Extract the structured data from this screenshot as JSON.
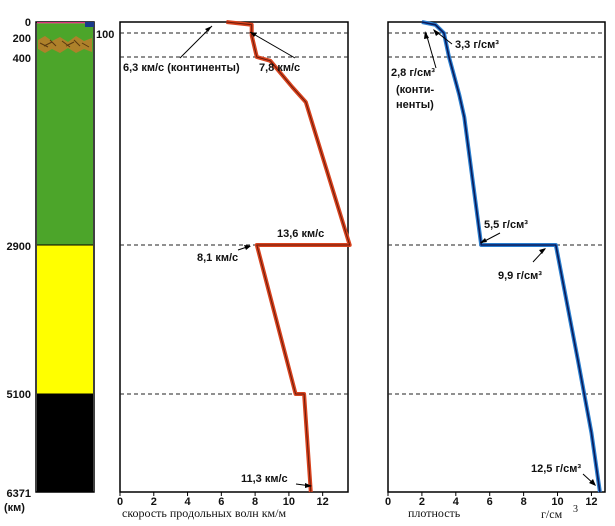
{
  "depth_axis": {
    "ticks": [
      "0",
      "200",
      "400",
      "2900",
      "5100",
      "6371"
    ],
    "unit": "(км)",
    "extra_mark": "100"
  },
  "layers": [
    {
      "name": "crust-strip",
      "top": 0,
      "bottom": 25,
      "color": "#e0307a"
    },
    {
      "name": "upper-mantle",
      "top": 25,
      "bottom": 400,
      "color": "#4ca52a"
    },
    {
      "name": "lower-mantle",
      "top": 400,
      "bottom": 2900,
      "color": "#4ca52a"
    },
    {
      "name": "outer-core",
      "top": 2900,
      "bottom": 5100,
      "color": "#ffff00"
    },
    {
      "name": "inner-core",
      "top": 5100,
      "bottom": 6371,
      "color": "#000000"
    }
  ],
  "velocity_panel": {
    "caption": "скорость продольных волн км/м",
    "ticks": [
      "0",
      "2",
      "4",
      "6",
      "8",
      "10",
      "12"
    ],
    "line_color": "#d8431e",
    "annotations": {
      "continents": "6,3 км/с (континенты)",
      "upper": "7,8 км/с",
      "mantle_bottom": "13,6 км/с",
      "core_top": "8,1 км/с",
      "center": "11,3 км/с"
    }
  },
  "density_panel": {
    "caption": "плотность",
    "unit": "г/см",
    "unit_exp": "3",
    "ticks": [
      "0",
      "2",
      "4",
      "6",
      "8",
      "10",
      "12"
    ],
    "line_color": "#2a7fd0",
    "annotations": {
      "upper": "3,3 г/см³",
      "continents_val": "2,8 г/см³",
      "continents_word1": "(конти-",
      "continents_word2": "ненты)",
      "mantle_bottom": "5,5 г/см³",
      "core_top": "9,9 г/см³",
      "center": "12,5 г/см³"
    }
  },
  "chart_data": [
    {
      "type": "line",
      "xlabel": "скорость продольных волн км/м",
      "xlim": [
        0,
        13.5
      ],
      "ylim": [
        0,
        6371
      ],
      "series": [
        {
          "x": [
            6.3,
            7.8,
            7.8,
            8.1,
            8.9,
            10.2,
            11.0,
            13.6,
            8.1,
            10.4,
            10.9,
            11.3
          ],
          "y": [
            0,
            50,
            220,
            400,
            450,
            800,
            1000,
            2900,
            2900,
            5100,
            5100,
            6371
          ]
        }
      ]
    },
    {
      "type": "line",
      "xlabel": "плотность",
      "xlim": [
        0,
        12.8
      ],
      "ylim": [
        0,
        6371
      ],
      "series": [
        {
          "x": [
            2.0,
            2.8,
            3.3,
            3.6,
            3.9,
            4.2,
            4.5,
            5.5,
            9.9,
            11.2,
            12.0,
            12.5
          ],
          "y": [
            0,
            50,
            200,
            400,
            650,
            900,
            1200,
            2900,
            2900,
            4600,
            5600,
            6371
          ]
        }
      ]
    }
  ]
}
